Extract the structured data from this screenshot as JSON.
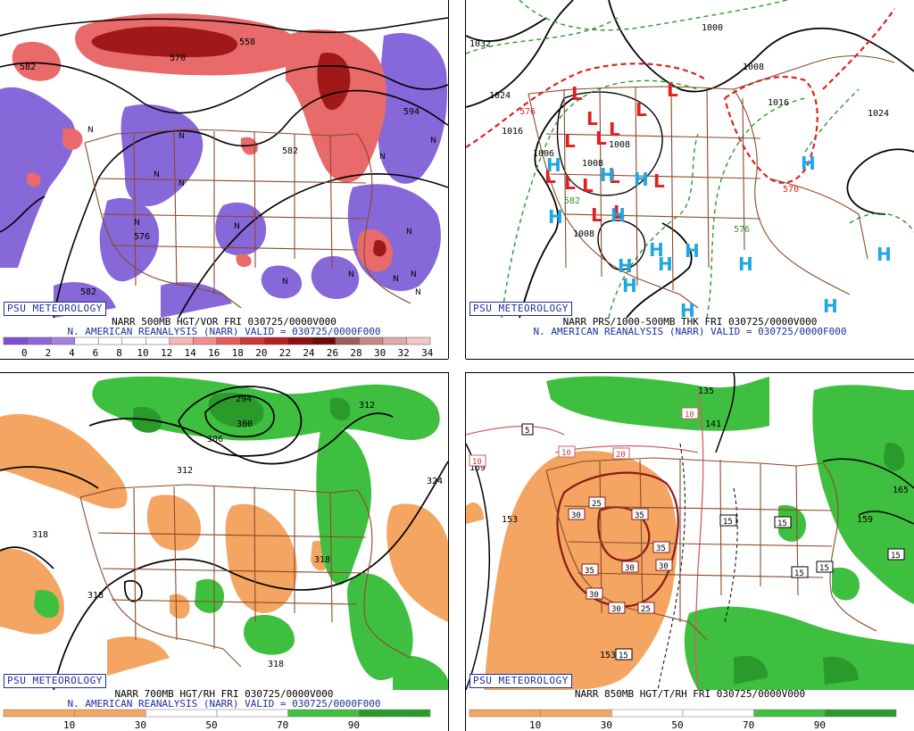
{
  "source_label": "PSU METEOROLOGY",
  "panels": [
    {
      "id": "tl",
      "line1": "NARR 500MB HGT/VOR FRI 030725/0000V000",
      "line2": "N. AMERICAN REANALYSIS (NARR) VALID = 030725/0000F000",
      "colorbar_colors": [
        "#7e4fd6",
        "#8e65da",
        "#a482e4",
        "#ffffff",
        "#ffffff",
        "#ffffff",
        "#ffffff",
        "#f7b7b7",
        "#f08e8e",
        "#e65a5a",
        "#d33636",
        "#b81e1e",
        "#901010",
        "#700a0a",
        "#9a5c5c",
        "#c88888",
        "#e0aaaa",
        "#f1c8c8"
      ],
      "colorbar_labels": [
        "0",
        "2",
        "4",
        "6",
        "8",
        "10",
        "12",
        "14",
        "16",
        "18",
        "20",
        "22",
        "24",
        "26",
        "28",
        "30",
        "32",
        "34"
      ],
      "contour_labels": [
        "582",
        "570",
        "558",
        "594",
        "582",
        "576",
        "582"
      ],
      "symbols": [
        "N",
        "N",
        "N",
        "N",
        "N",
        "N",
        "N",
        "N",
        "N",
        "N",
        "N",
        "N",
        "N",
        "N"
      ]
    },
    {
      "id": "tr",
      "line1": "NARR PRS/1000-500MB THK FRI 030725/0000V000",
      "line2": "N. AMERICAN REANALYSIS (NARR) VALID = 030725/0000F000",
      "contour_labels": [
        "1032",
        "1024",
        "1016",
        "1000",
        "1008",
        "1016",
        "1024",
        "1008",
        "1008",
        "1008",
        "1006",
        "576",
        "570",
        "582",
        "576"
      ],
      "high_symbol": "H",
      "low_symbol": "L",
      "high_color": "#1fa7e0",
      "low_color": "#e02020"
    },
    {
      "id": "bl",
      "line1": "NARR 700MB HGT/RH FRI 030725/0000V000",
      "line2": "N. AMERICAN REANALYSIS (NARR) VALID = 030725/0000F000",
      "colorbar_labels": [
        "10",
        "30",
        "50",
        "70",
        "90"
      ],
      "contour_labels": [
        "294",
        "300",
        "306",
        "312",
        "312",
        "324",
        "318",
        "318",
        "318",
        "318"
      ]
    },
    {
      "id": "br",
      "line1": "NARR 850MB HGT/T/RH FRI 030725/0000V000",
      "colorbar_labels": [
        "10",
        "30",
        "50",
        "70",
        "90"
      ],
      "contour_labels": [
        "135",
        "141",
        "159",
        "153",
        "165",
        "159",
        "153"
      ],
      "temp_labels": [
        "5",
        "10",
        "10",
        "20",
        "10",
        "25",
        "30",
        "35",
        "35",
        "30",
        "30",
        "35",
        "30",
        "30",
        "25",
        "15",
        "15",
        "15",
        "15",
        "15",
        "15"
      ]
    }
  ],
  "colors": {
    "dry": "#f3a561",
    "moist": "#3fbf3f",
    "moist_dark": "#2a9a2a",
    "border": "#8b4a2a",
    "cyclonic": "#8060d8",
    "anticyclonic": "#e05858",
    "badge": "#1c2f9e"
  }
}
